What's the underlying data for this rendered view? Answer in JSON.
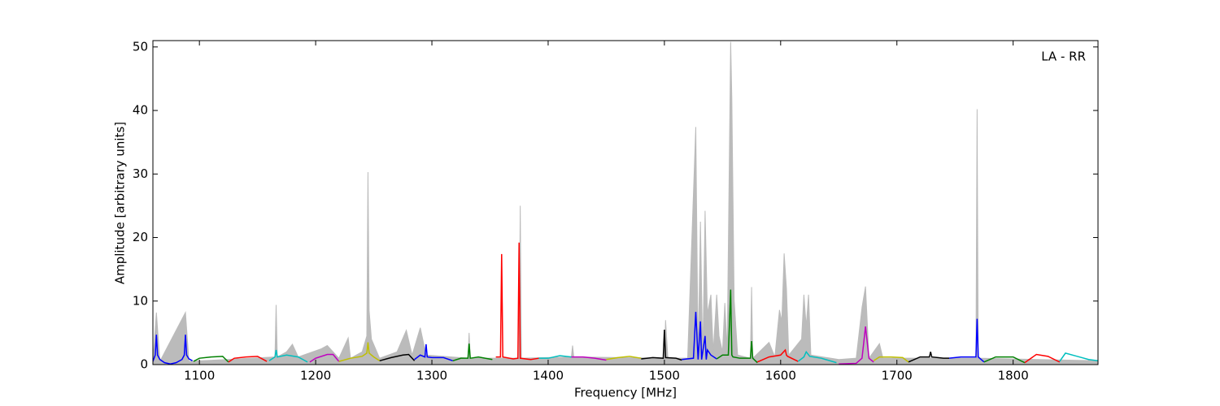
{
  "chart_data": {
    "type": "line",
    "xlabel": "Frequency [MHz]",
    "ylabel": "Amplitude [arbitrary units]",
    "annotation": "LA - RR",
    "xlim": [
      1060,
      1873
    ],
    "ylim": [
      0,
      51
    ],
    "xticks": [
      1100,
      1200,
      1300,
      1400,
      1500,
      1600,
      1700,
      1800
    ],
    "yticks": [
      0,
      10,
      20,
      30,
      40,
      50
    ],
    "series": [
      {
        "color": "#bbbbbb",
        "fill": true,
        "x": [
          1060,
          1063,
          1066,
          1088,
          1091,
          1165,
          1166,
          1167,
          1175,
          1180,
          1185,
          1205,
          1210,
          1220,
          1228,
          1230,
          1240,
          1244,
          1245,
          1246,
          1248,
          1255,
          1270,
          1278,
          1283,
          1290,
          1295,
          1331,
          1332,
          1333,
          1375,
          1376,
          1377,
          1420,
          1421,
          1422,
          1500,
          1501,
          1503,
          1520,
          1527,
          1529,
          1531,
          1533,
          1535,
          1537,
          1540,
          1542,
          1545,
          1547,
          1550,
          1552,
          1554,
          1557,
          1558,
          1560,
          1563,
          1574,
          1575,
          1576,
          1590,
          1595,
          1599,
          1601,
          1603,
          1605,
          1607,
          1618,
          1620,
          1622,
          1624,
          1626,
          1650,
          1665,
          1670,
          1673,
          1676,
          1685,
          1688,
          1768,
          1769,
          1770,
          1873
        ],
        "values": [
          0.5,
          8.2,
          0.5,
          8.2,
          0.5,
          1.2,
          9.4,
          1.2,
          2,
          3.2,
          1.2,
          2.5,
          3,
          1,
          4.2,
          1,
          2,
          4.5,
          30.3,
          8.5,
          4,
          1,
          2,
          5.4,
          1.5,
          5.8,
          1.5,
          1,
          5,
          1,
          1,
          25,
          1,
          1.2,
          3,
          1.2,
          1,
          7,
          1,
          1,
          37.4,
          1,
          22.5,
          1,
          24.2,
          8,
          11,
          2,
          11,
          4.5,
          2,
          9.7,
          2,
          50.8,
          42,
          10.2,
          1.5,
          1,
          12.2,
          1,
          3.5,
          1.2,
          8.6,
          6.8,
          17.5,
          12,
          1.5,
          4,
          11,
          6,
          11,
          1.5,
          0.8,
          1,
          9,
          12.3,
          1,
          3.3,
          1,
          1,
          40.2,
          1,
          0.6
        ]
      },
      {
        "color": "#0000ff",
        "x": [
          1060,
          1062,
          1063,
          1064,
          1066,
          1070,
          1075,
          1080,
          1085,
          1087,
          1088,
          1089,
          1091,
          1094
        ],
        "values": [
          0.5,
          1.5,
          4.7,
          1.5,
          0.8,
          0.3,
          0.1,
          0.3,
          0.8,
          1.5,
          4.7,
          1.5,
          0.9,
          0.6
        ]
      },
      {
        "color": "#008000",
        "x": [
          1095,
          1100,
          1110,
          1120,
          1125
        ],
        "values": [
          0.5,
          1.0,
          1.2,
          1.3,
          0.4
        ]
      },
      {
        "color": "#ff0000",
        "x": [
          1125,
          1130,
          1140,
          1150,
          1158
        ],
        "values": [
          0.4,
          1.0,
          1.2,
          1.3,
          0.5
        ]
      },
      {
        "color": "#00bfbf",
        "x": [
          1160,
          1165,
          1166,
          1167,
          1175,
          1185,
          1193
        ],
        "values": [
          0.6,
          1.2,
          2.3,
          1.2,
          1.5,
          1.2,
          0.4
        ]
      },
      {
        "color": "#bf00bf",
        "x": [
          1195,
          1200,
          1210,
          1215,
          1220
        ],
        "values": [
          0.4,
          1.0,
          1.6,
          1.6,
          0.5
        ]
      },
      {
        "color": "#bfbf00",
        "x": [
          1220,
          1230,
          1240,
          1244,
          1245,
          1246,
          1250,
          1255
        ],
        "values": [
          0.5,
          1.0,
          1.3,
          1.8,
          3.5,
          1.8,
          1.2,
          0.6
        ]
      },
      {
        "color": "#000000",
        "x": [
          1255,
          1265,
          1275,
          1280,
          1285
        ],
        "values": [
          0.6,
          1.1,
          1.5,
          1.6,
          0.6
        ]
      },
      {
        "color": "#0000ff",
        "x": [
          1285,
          1290,
          1294,
          1295,
          1296,
          1300,
          1310,
          1318
        ],
        "values": [
          0.8,
          1.5,
          1.2,
          3.2,
          1.2,
          1.1,
          1.1,
          0.6
        ]
      },
      {
        "color": "#008000",
        "x": [
          1318,
          1325,
          1331,
          1332,
          1333,
          1340,
          1352
        ],
        "values": [
          0.6,
          1.0,
          1.0,
          3.3,
          1.0,
          1.2,
          0.8
        ]
      },
      {
        "color": "#ff0000",
        "x": [
          1355,
          1359,
          1360,
          1361,
          1370,
          1374,
          1375,
          1376,
          1385,
          1392
        ],
        "values": [
          1.2,
          1.2,
          17.4,
          1.2,
          0.9,
          1.0,
          19.2,
          1.0,
          0.8,
          1.0
        ]
      },
      {
        "color": "#00bfbf",
        "x": [
          1392,
          1400,
          1410,
          1420
        ],
        "values": [
          1.0,
          1.0,
          1.4,
          1.2
        ]
      },
      {
        "color": "#bf00bf",
        "x": [
          1420,
          1430,
          1440,
          1450
        ],
        "values": [
          1.2,
          1.2,
          1.0,
          0.7
        ]
      },
      {
        "color": "#bfbf00",
        "x": [
          1450,
          1460,
          1470,
          1480
        ],
        "values": [
          0.8,
          1.1,
          1.3,
          1.0
        ]
      },
      {
        "color": "#000000",
        "x": [
          1480,
          1490,
          1499,
          1500,
          1501,
          1510,
          1515
        ],
        "values": [
          0.9,
          1.1,
          1.0,
          5.5,
          1.1,
          1.0,
          0.7
        ]
      },
      {
        "color": "#0000ff",
        "x": [
          1515,
          1525,
          1527,
          1529,
          1531,
          1532,
          1535,
          1536,
          1537,
          1540,
          1545
        ],
        "values": [
          0.8,
          1.0,
          8.3,
          0.8,
          6.8,
          0.8,
          4.5,
          0.8,
          2.3,
          1.5,
          0.9
        ]
      },
      {
        "color": "#008000",
        "x": [
          1545,
          1550,
          1555,
          1557,
          1558,
          1559,
          1565,
          1574,
          1575,
          1576,
          1580
        ],
        "values": [
          0.9,
          1.5,
          1.5,
          11.8,
          1.5,
          1.2,
          1.0,
          1.0,
          3.7,
          1.0,
          0.3
        ]
      },
      {
        "color": "#ff0000",
        "x": [
          1580,
          1590,
          1600,
          1604,
          1605,
          1606,
          1615
        ],
        "values": [
          0.4,
          1.2,
          1.5,
          2.3,
          1.5,
          1.3,
          0.5
        ]
      },
      {
        "color": "#00bfbf",
        "x": [
          1615,
          1620,
          1622,
          1625,
          1635,
          1648
        ],
        "values": [
          0.5,
          1.2,
          2.0,
          1.3,
          1.0,
          0.3
        ]
      },
      {
        "color": "#bf00bf",
        "x": [
          1650,
          1665,
          1670,
          1673,
          1676,
          1680
        ],
        "values": [
          0.1,
          0.2,
          1.0,
          6.0,
          1.0,
          0.4
        ]
      },
      {
        "color": "#bfbf00",
        "x": [
          1680,
          1685,
          1695,
          1705,
          1710
        ],
        "values": [
          0.6,
          1.2,
          1.2,
          1.1,
          0.4
        ]
      },
      {
        "color": "#000000",
        "x": [
          1710,
          1720,
          1728,
          1729,
          1730,
          1740,
          1745
        ],
        "values": [
          0.4,
          1.2,
          1.2,
          2.0,
          1.2,
          1.0,
          1.0
        ]
      },
      {
        "color": "#0000ff",
        "x": [
          1745,
          1755,
          1765,
          1768,
          1769,
          1770,
          1775
        ],
        "values": [
          1.0,
          1.2,
          1.2,
          1.2,
          7.2,
          1.2,
          0.4
        ]
      },
      {
        "color": "#008000",
        "x": [
          1775,
          1785,
          1800,
          1810
        ],
        "values": [
          0.4,
          1.2,
          1.2,
          0.3
        ]
      },
      {
        "color": "#ff0000",
        "x": [
          1810,
          1820,
          1830,
          1840
        ],
        "values": [
          0.3,
          1.6,
          1.3,
          0.4
        ]
      },
      {
        "color": "#00bfbf",
        "x": [
          1840,
          1845,
          1855,
          1865,
          1873
        ],
        "values": [
          0.5,
          1.8,
          1.3,
          0.8,
          0.6
        ]
      }
    ]
  }
}
